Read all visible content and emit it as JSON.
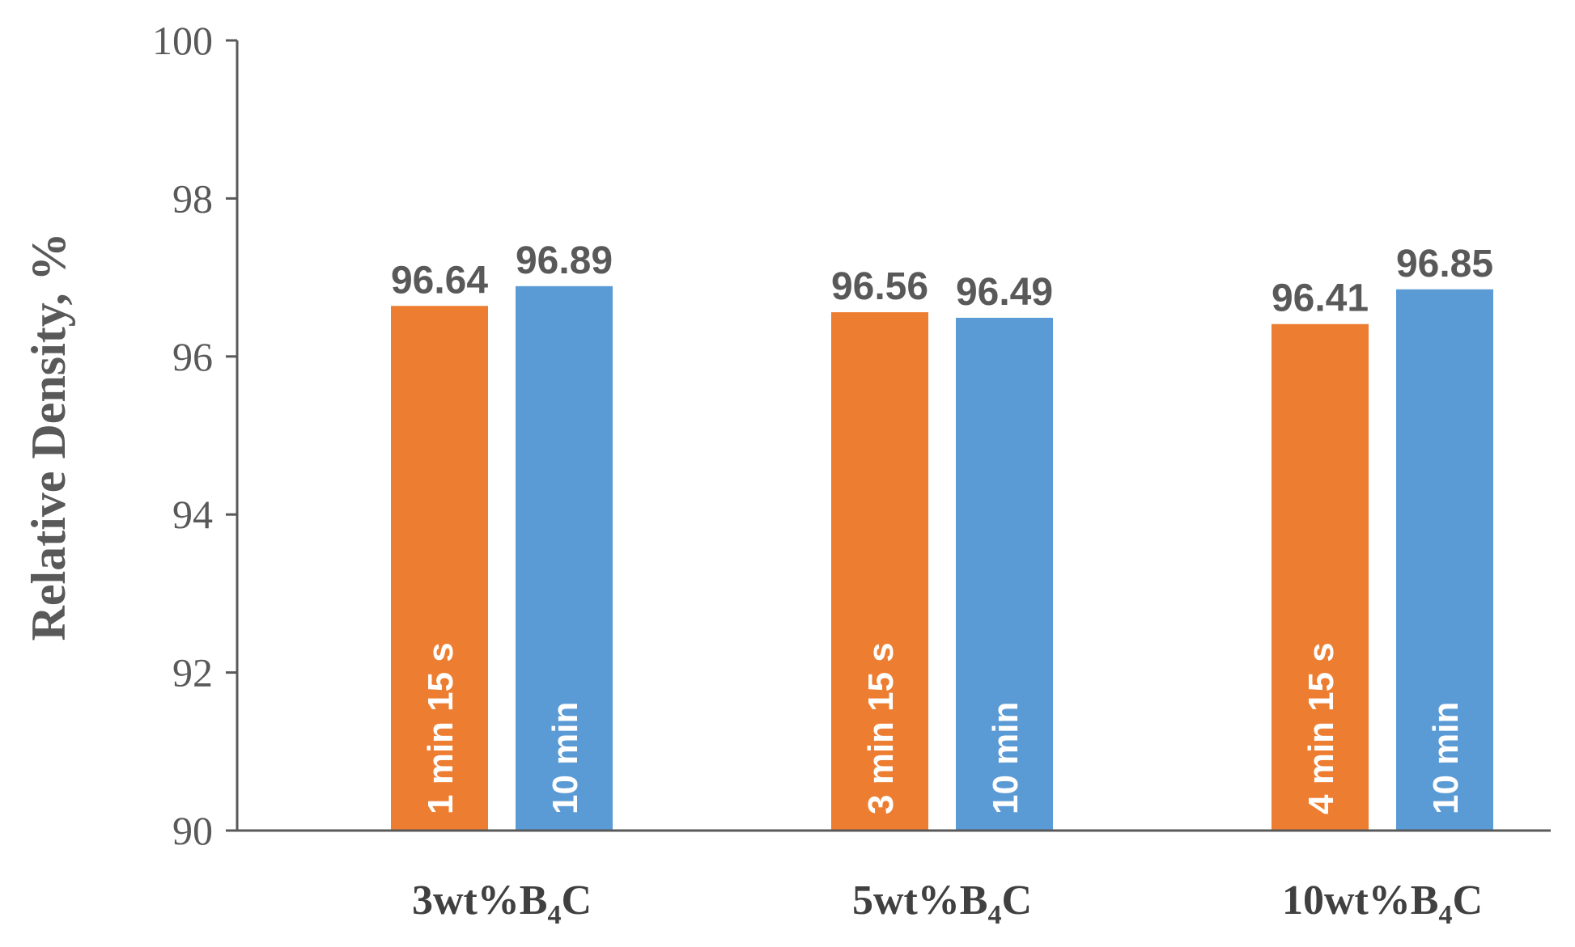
{
  "chart_data": {
    "type": "bar",
    "title": "",
    "xlabel": "",
    "ylabel": "Relative Density, %",
    "ylim": [
      90,
      100
    ],
    "yticks": [
      90,
      92,
      94,
      96,
      98,
      100
    ],
    "grid": false,
    "legend": "none",
    "categories": [
      {
        "label": "3wt%B",
        "sub": "4",
        "suffix": "C"
      },
      {
        "label": "5wt%B",
        "sub": "4",
        "suffix": "C"
      },
      {
        "label": "10wt%B",
        "sub": "4",
        "suffix": "C"
      }
    ],
    "bars": [
      {
        "category": 0,
        "value": 96.64,
        "value_label": "96.64",
        "inner_label": "1 min 15 s",
        "color": "#ED7D31"
      },
      {
        "category": 0,
        "value": 96.89,
        "value_label": "96.89",
        "inner_label": "10 min",
        "color": "#5B9BD5"
      },
      {
        "category": 1,
        "value": 96.56,
        "value_label": "96.56",
        "inner_label": "3 min 15 s",
        "color": "#ED7D31"
      },
      {
        "category": 1,
        "value": 96.49,
        "value_label": "96.49",
        "inner_label": "10 min",
        "color": "#5B9BD5"
      },
      {
        "category": 2,
        "value": 96.41,
        "value_label": "96.41",
        "inner_label": "4 min 15 s",
        "color": "#ED7D31"
      },
      {
        "category": 2,
        "value": 96.85,
        "value_label": "96.85",
        "inner_label": "10 min",
        "color": "#5B9BD5"
      }
    ]
  }
}
